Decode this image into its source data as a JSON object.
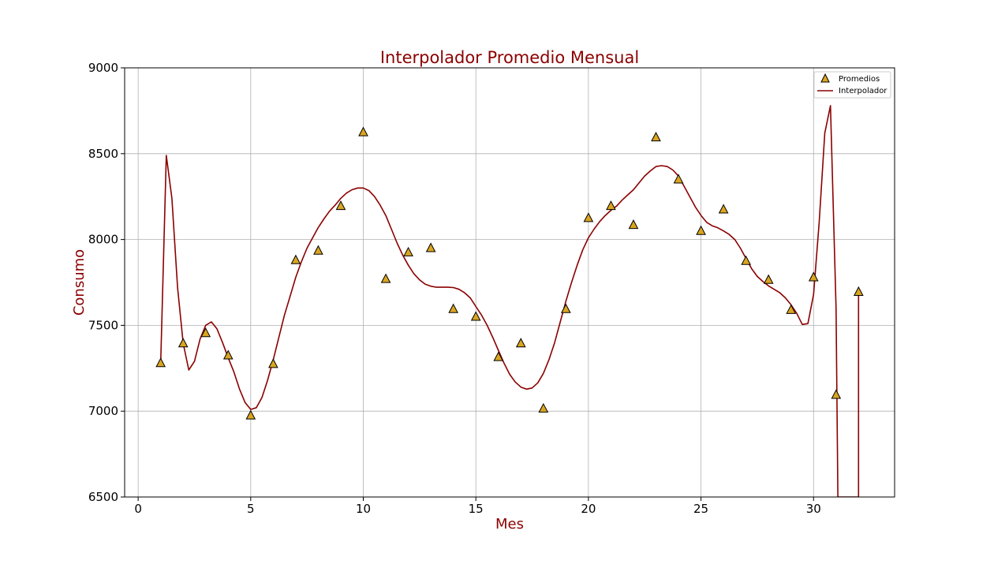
{
  "chart_data": {
    "type": "line",
    "title": "Interpolador Promedio Mensual",
    "xlabel": "Mes",
    "ylabel": "Consumo",
    "xlim": [
      -0.6,
      33.6
    ],
    "ylim": [
      6500,
      9000
    ],
    "xticks": [
      0,
      5,
      10,
      15,
      20,
      25,
      30
    ],
    "yticks": [
      6500,
      7000,
      7500,
      8000,
      8500,
      9000
    ],
    "grid": true,
    "legend_position": "top-right",
    "colors": {
      "text": "#8b0000",
      "line": "#8b0000",
      "marker": "#daa520",
      "marker_edge": "#000000",
      "grid": "#b0b0b0"
    },
    "series": [
      {
        "name": "Promedios",
        "kind": "scatter",
        "marker": "triangle",
        "x": [
          1,
          2,
          3,
          4,
          5,
          6,
          7,
          8,
          9,
          10,
          11,
          12,
          13,
          14,
          15,
          16,
          17,
          18,
          19,
          20,
          21,
          22,
          23,
          24,
          25,
          26,
          27,
          28,
          29,
          30,
          31,
          32
        ],
        "y": [
          7280,
          7395,
          7455,
          7325,
          6975,
          7275,
          7880,
          7935,
          8195,
          8625,
          7770,
          7925,
          7950,
          7595,
          7550,
          7315,
          7395,
          7015,
          7595,
          8125,
          8195,
          8085,
          8595,
          8350,
          8050,
          8175,
          7875,
          7765,
          7590,
          7780,
          7095,
          7695
        ]
      },
      {
        "name": "Interpolador",
        "kind": "line",
        "x": [
          1.0,
          1.25,
          1.5,
          1.75,
          2.0,
          2.25,
          2.5,
          2.75,
          3.0,
          3.25,
          3.5,
          3.75,
          4.0,
          4.25,
          4.5,
          4.75,
          5.0,
          5.25,
          5.5,
          5.75,
          6.0,
          6.25,
          6.5,
          6.75,
          7.0,
          7.25,
          7.5,
          7.75,
          8.0,
          8.25,
          8.5,
          8.75,
          9.0,
          9.25,
          9.5,
          9.75,
          10.0,
          10.25,
          10.5,
          10.75,
          11.0,
          11.25,
          11.5,
          11.75,
          12.0,
          12.25,
          12.5,
          12.75,
          13.0,
          13.25,
          13.5,
          13.75,
          14.0,
          14.25,
          14.5,
          14.75,
          15.0,
          15.25,
          15.5,
          15.75,
          16.0,
          16.25,
          16.5,
          16.75,
          17.0,
          17.25,
          17.5,
          17.75,
          18.0,
          18.25,
          18.5,
          18.75,
          19.0,
          19.25,
          19.5,
          19.75,
          20.0,
          20.25,
          20.5,
          20.75,
          21.0,
          21.25,
          21.5,
          21.75,
          22.0,
          22.25,
          22.5,
          22.75,
          23.0,
          23.25,
          23.5,
          23.75,
          24.0,
          24.25,
          24.5,
          24.75,
          25.0,
          25.25,
          25.5,
          25.75,
          26.0,
          26.25,
          26.5,
          26.75,
          27.0,
          27.25,
          27.5,
          27.75,
          28.0,
          28.25,
          28.5,
          28.75,
          29.0,
          29.25,
          29.5,
          29.75,
          30.0,
          30.25,
          30.5,
          30.75,
          31.0,
          31.08,
          32.0,
          32.0
        ],
        "y": [
          7280,
          8490,
          8240,
          7720,
          7395,
          7240,
          7290,
          7420,
          7500,
          7520,
          7480,
          7400,
          7310,
          7230,
          7130,
          7050,
          7010,
          7020,
          7080,
          7180,
          7300,
          7430,
          7560,
          7670,
          7780,
          7870,
          7950,
          8010,
          8070,
          8120,
          8165,
          8200,
          8240,
          8270,
          8290,
          8300,
          8300,
          8285,
          8250,
          8200,
          8140,
          8060,
          7980,
          7910,
          7850,
          7800,
          7765,
          7740,
          7728,
          7722,
          7722,
          7722,
          7720,
          7710,
          7690,
          7660,
          7610,
          7560,
          7500,
          7430,
          7355,
          7280,
          7215,
          7170,
          7140,
          7128,
          7135,
          7165,
          7220,
          7300,
          7400,
          7520,
          7640,
          7750,
          7850,
          7940,
          8010,
          8060,
          8105,
          8140,
          8170,
          8195,
          8230,
          8260,
          8290,
          8330,
          8370,
          8400,
          8425,
          8430,
          8425,
          8405,
          8370,
          8310,
          8250,
          8190,
          8140,
          8100,
          8080,
          8068,
          8050,
          8030,
          8000,
          7950,
          7890,
          7830,
          7785,
          7755,
          7730,
          7710,
          7690,
          7660,
          7620,
          7570,
          7505,
          7510,
          7680,
          8100,
          8620,
          8780,
          7600,
          6500,
          6500,
          7695
        ]
      }
    ]
  }
}
